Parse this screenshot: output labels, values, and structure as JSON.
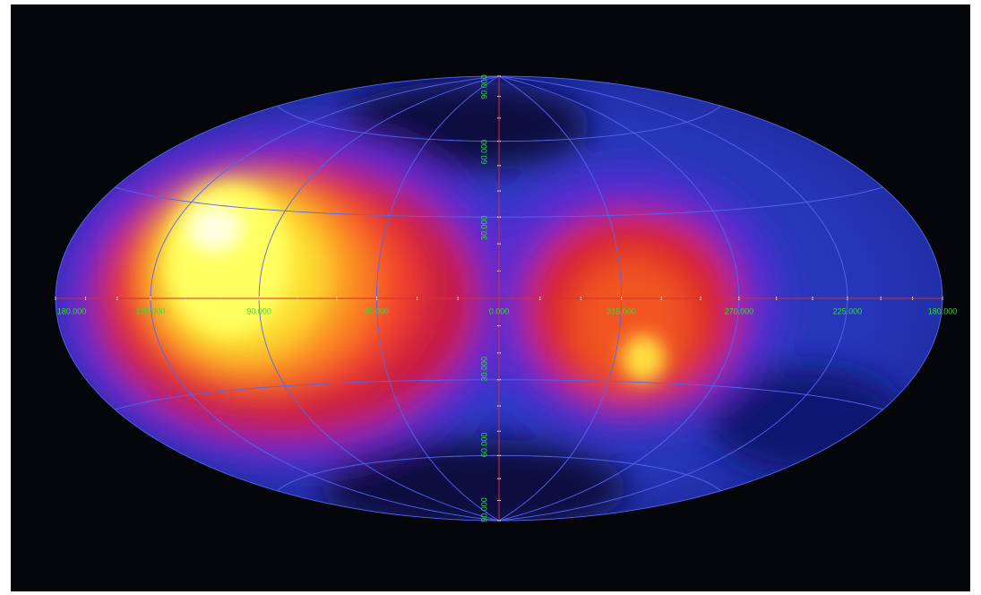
{
  "longitude_labels": [
    "180.000",
    "135.000",
    "90.000",
    "45.000",
    "0.000",
    "315.000",
    "270.000",
    "225.000",
    "180.000"
  ],
  "latitude_labels": [
    "90.000",
    "60.000",
    "30.000",
    "30.000",
    "60.000",
    "90.000"
  ]
}
